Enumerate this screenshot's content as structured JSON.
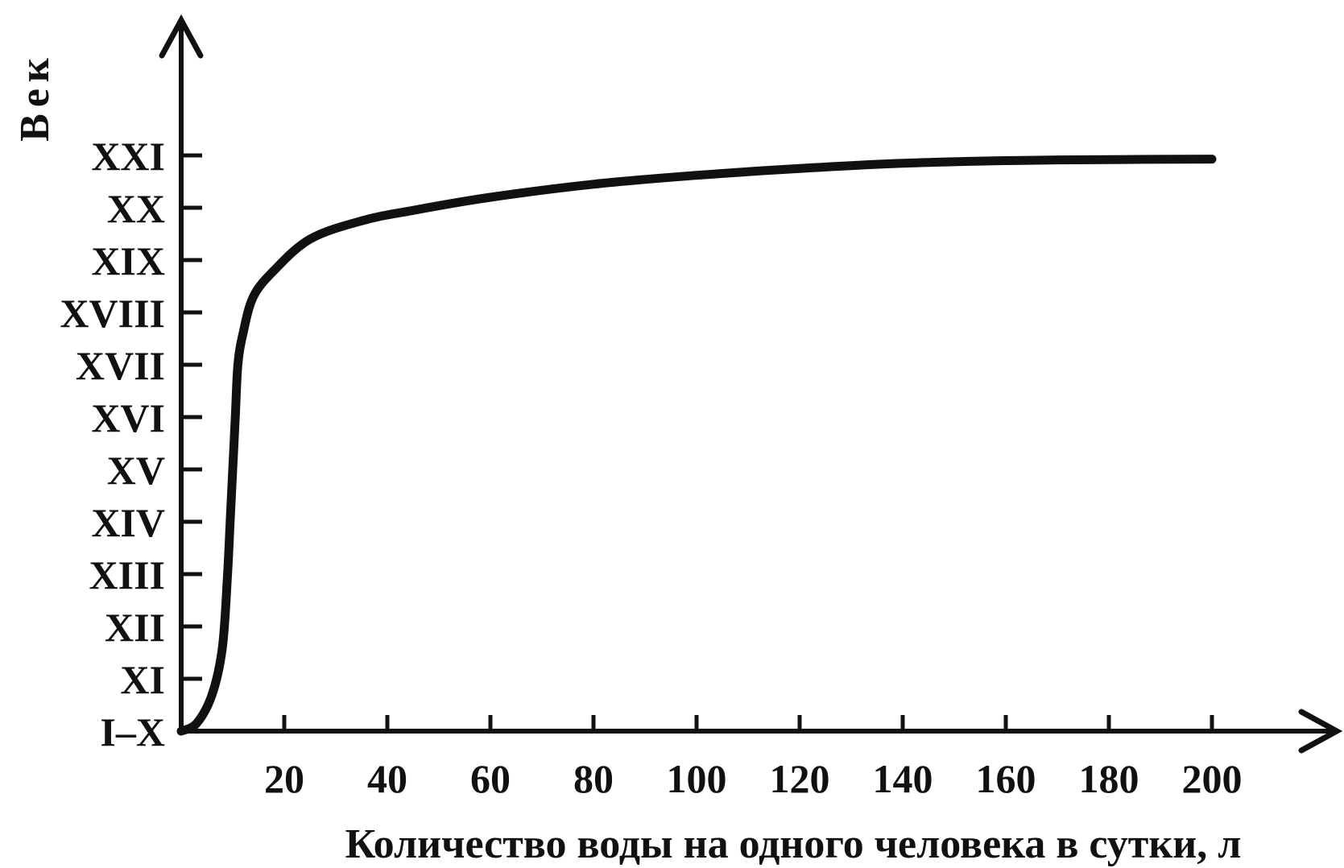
{
  "chart_data": {
    "type": "line",
    "title": "",
    "xlabel": "Количество воды на одного человека в сутки, л",
    "ylabel": "Век",
    "x_ticks": [
      20,
      40,
      60,
      80,
      100,
      120,
      140,
      160,
      180,
      200
    ],
    "y_categories": [
      "I–X",
      "XI",
      "XII",
      "XIII",
      "XIV",
      "XV",
      "XVI",
      "XVII",
      "XVIII",
      "XIX",
      "XX",
      "XXI"
    ],
    "xlim": [
      0,
      200
    ],
    "grid": false,
    "legend": "none",
    "series": [
      {
        "x": [
          0,
          3,
          6,
          8,
          9,
          9.5,
          10,
          10.5,
          11,
          12,
          14,
          18,
          25,
          35,
          45,
          60,
          80,
          100,
          120,
          140,
          160,
          180,
          200
        ],
        "y": [
          "I–X",
          "I–X",
          "XI",
          "XII",
          "XIII",
          "XIV",
          "XV",
          "XVI",
          "XVII",
          "XVIII",
          "XVIII",
          "XIX",
          "XIX",
          "XX",
          "XX",
          "XX",
          "XXI",
          "XXI",
          "XXI",
          "XXI",
          "XXI",
          "XXI",
          "XXI"
        ],
        "y_index": [
          0,
          0.15,
          0.7,
          1.6,
          3,
          4,
          5,
          6,
          7,
          7.6,
          8.3,
          8.8,
          9.4,
          9.75,
          9.95,
          10.2,
          10.45,
          10.62,
          10.75,
          10.85,
          10.9,
          10.92,
          10.93
        ]
      }
    ],
    "colors": {
      "line": "#111111",
      "axis": "#111111",
      "background": "#ffffff"
    }
  }
}
